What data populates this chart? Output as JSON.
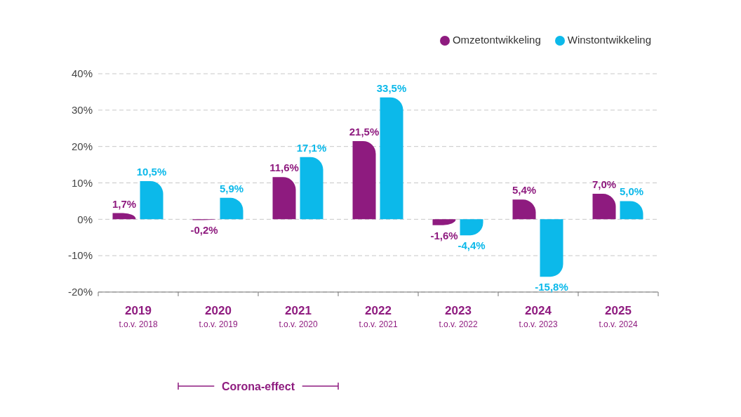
{
  "chart_data": {
    "type": "bar",
    "categories": [
      "2019\nt.o.v. 2018",
      "2020\nt.o.v. 2019",
      "2021\nt.o.v. 2020",
      "2022\nt.o.v. 2021",
      "2023\nt.o.v. 2022",
      "2024\nt.o.v. 2023",
      "2025\nt.o.v. 2024"
    ],
    "series": [
      {
        "name": "Omzetontwikkeling",
        "color": "#8e1b7f",
        "values": [
          1.7,
          -0.2,
          11.6,
          21.5,
          -1.6,
          5.4,
          7.0
        ],
        "value_labels": [
          "1,7%",
          "-0,2%",
          "11,6%",
          "21,5%",
          "-1,6%",
          "5,4%",
          "7,0%"
        ]
      },
      {
        "name": "Winstontwikkeling",
        "color": "#0cb9ea",
        "values": [
          10.5,
          5.9,
          17.1,
          33.5,
          -4.4,
          -15.8,
          5.0
        ],
        "value_labels": [
          "10,5%",
          "5,9%",
          "17,1%",
          "33,5%",
          "-4,4%",
          "-15,8%",
          "5,0%"
        ]
      }
    ],
    "ylim": [
      -20,
      40
    ],
    "yticks": [
      {
        "value": -20,
        "label": "-20%"
      },
      {
        "value": -10,
        "label": "-10%"
      },
      {
        "value": 0,
        "label": "0%"
      },
      {
        "value": 10,
        "label": "10%"
      },
      {
        "value": 20,
        "label": "20%"
      },
      {
        "value": 30,
        "label": "30%"
      },
      {
        "value": 40,
        "label": "40%"
      }
    ],
    "grid": "y",
    "legend": "top right",
    "annotations": [
      "Corona-effect"
    ]
  }
}
